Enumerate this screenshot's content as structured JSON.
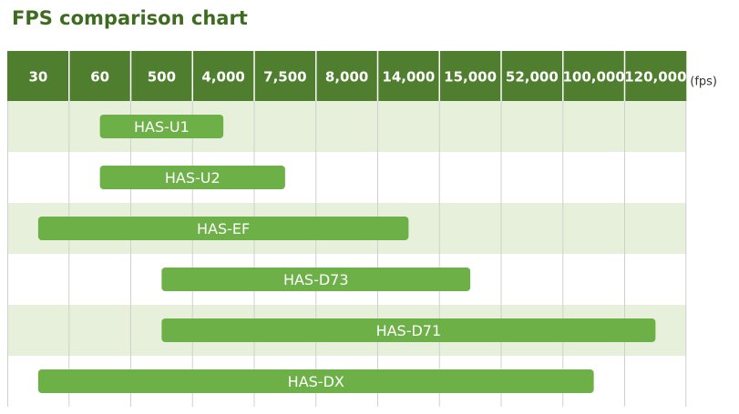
{
  "title": "FPS comparison chart",
  "chart_data": {
    "type": "bar",
    "subtype": "range",
    "title": "FPS comparison chart",
    "categories": [
      "30",
      "60",
      "500",
      "4,000",
      "7,500",
      "8,000",
      "14,000",
      "15,000",
      "52,000",
      "100,000",
      "120,000"
    ],
    "unit_label": "(fps)",
    "xlabel": "",
    "ylabel": "",
    "grid": true,
    "legend": "none",
    "series": [
      {
        "name": "HAS-U1",
        "from": "60",
        "to": "4,000"
      },
      {
        "name": "HAS-U2",
        "from": "60",
        "to": "7,500"
      },
      {
        "name": "HAS-EF",
        "from": "30",
        "to": "14,000"
      },
      {
        "name": "HAS-D73",
        "from": "500",
        "to": "15,000"
      },
      {
        "name": "HAS-D71",
        "from": "500",
        "to": "120,000"
      },
      {
        "name": "HAS-DX",
        "from": "30",
        "to": "100,000"
      }
    ],
    "colors": {
      "header_bg": "#4f7f2e",
      "header_text": "#ffffff",
      "bar": "#6eb048",
      "bar_text": "#ffffff",
      "band_light": "#e6f0da",
      "band_white": "#ffffff",
      "grid": "#d0d0d0",
      "title": "#3d6b1f",
      "unit": "#333333"
    }
  }
}
